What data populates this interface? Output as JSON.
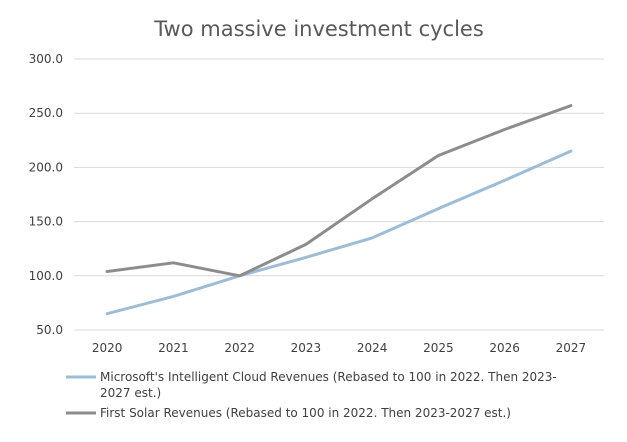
{
  "chart_data": {
    "type": "line",
    "title": "Two massive investment cycles",
    "categories": [
      "2020",
      "2021",
      "2022",
      "2023",
      "2024",
      "2025",
      "2026",
      "2027"
    ],
    "ylim": [
      50,
      300
    ],
    "yticks": [
      "300.0",
      "250.0",
      "200.0",
      "150.0",
      "100.0",
      "50.0"
    ],
    "grid": true,
    "legend_position": "bottom",
    "series": [
      {
        "name": "Microsoft's Intelligent Cloud Revenues (Rebased to 100 in 2022. Then 2023-2027 est.)",
        "legend_lines": [
          "Microsoft's Intelligent Cloud Revenues (Rebased to 100 in 2022. Then 2023-",
          "2027 est.)"
        ],
        "color": "#9dbcd6",
        "values": [
          65,
          81,
          100,
          117,
          135,
          162,
          188,
          215
        ]
      },
      {
        "name": "First Solar Revenues (Rebased to 100 in 2022. Then 2023-2027 est.)",
        "legend_lines": [
          "First Solar Revenues (Rebased to 100 in 2022. Then 2023-2027 est.)"
        ],
        "color": "#8c8c8c",
        "values": [
          104,
          112,
          100,
          129,
          171,
          211,
          235,
          257
        ]
      }
    ]
  }
}
